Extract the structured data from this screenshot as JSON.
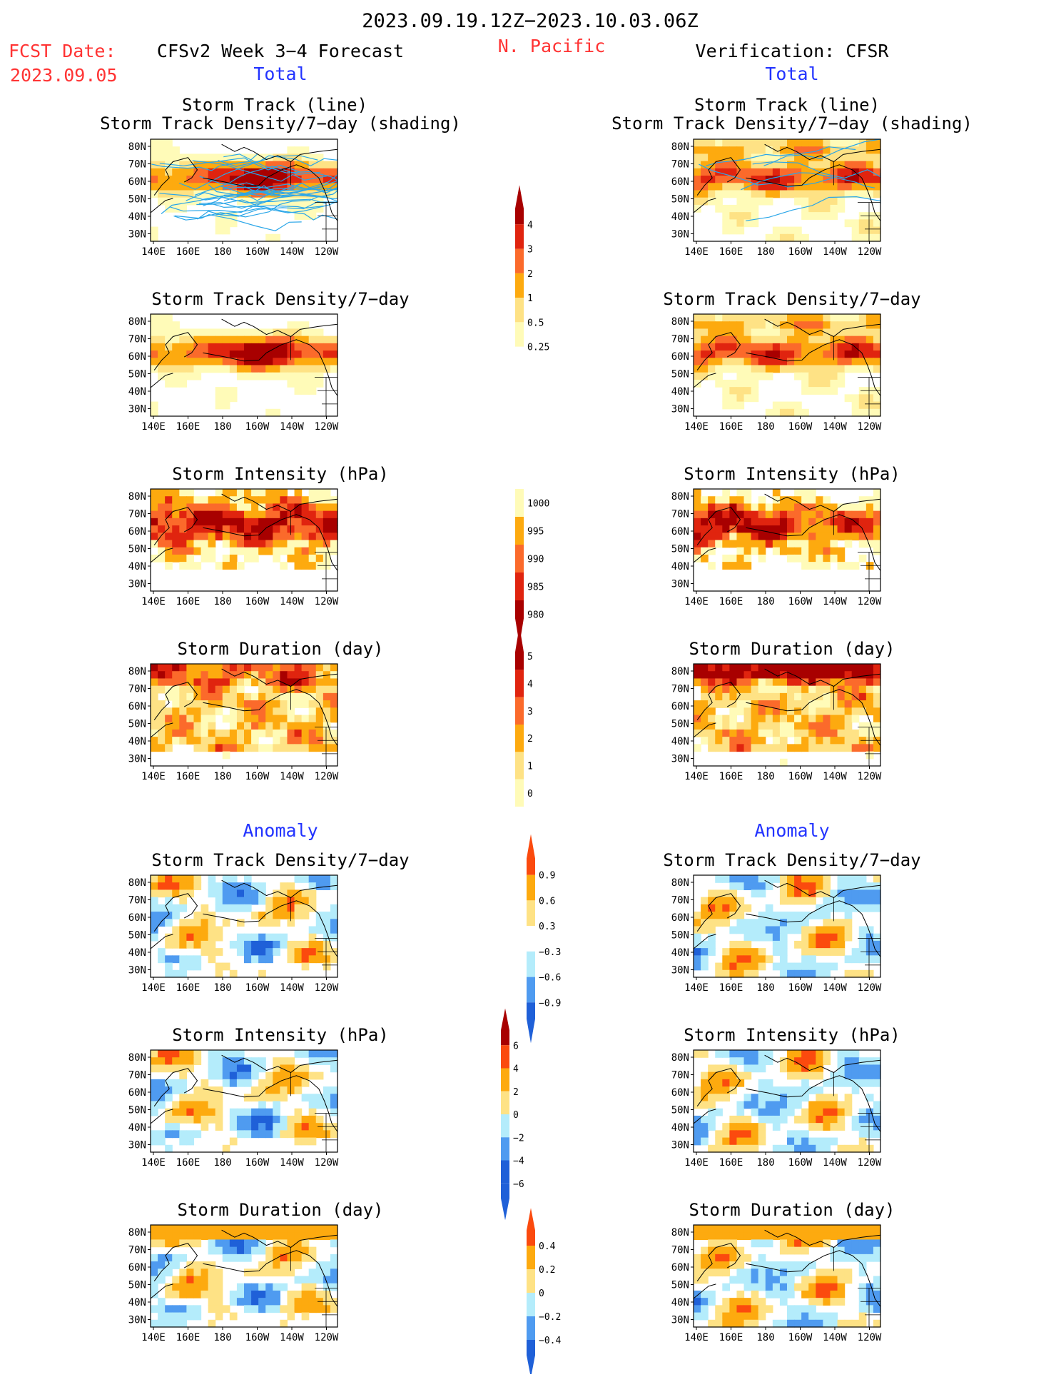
{
  "header": {
    "date_range": "2023.09.19.12Z−2023.10.03.06Z",
    "region": "N. Pacific",
    "fcst_label": "FCST Date:",
    "fcst_date": "2023.09.05",
    "forecast_title": "CFSv2 Week 3−4 Forecast",
    "verification_title": "Verification: CFSR",
    "left_sub": "Total",
    "right_sub": "Total"
  },
  "section_anomaly": "Anomaly",
  "axes": {
    "x_ticks": [
      "140E",
      "160E",
      "180",
      "160W",
      "140W",
      "120W"
    ],
    "y_ticks": [
      "80N",
      "70N",
      "60N",
      "50N",
      "40N",
      "30N"
    ]
  },
  "panels": {
    "st_title1": "Storm Track (line)",
    "st_title2": "Storm Track Density/7−day (shading)",
    "density": "Storm Track Density/7−day",
    "intensity": "Storm Intensity (hPa)",
    "duration": "Storm Duration (day)"
  },
  "colorbars": {
    "density": [
      "4",
      "3",
      "2",
      "1",
      "0.5",
      "0.25"
    ],
    "intensity": [
      "1000",
      "995",
      "990",
      "985",
      "980"
    ],
    "duration": [
      "5",
      "4",
      "3",
      "2",
      "1",
      "0"
    ],
    "density_anom": [
      "0.9",
      "0.6",
      "0.3",
      "−0.3",
      "−0.6",
      "−0.9"
    ],
    "intensity_anom": [
      "6",
      "4",
      "2",
      "0",
      "−2",
      "−4",
      "−6"
    ],
    "duration_anom": [
      "0.4",
      "0.2",
      "0",
      "−0.2",
      "−0.4"
    ]
  },
  "colors": {
    "warm": [
      "#fffbb8",
      "#fee285",
      "#fdaa0f",
      "#fb6a2b",
      "#e0240f",
      "#a80000"
    ],
    "intensity": [
      "#fffbb8",
      "#fdaa0f",
      "#fb6a2b",
      "#e0240f",
      "#a80000"
    ],
    "diverging": [
      "#1f60d8",
      "#4f9bf0",
      "#b4ecfb",
      "#ffffff",
      "#fee285",
      "#fdaa0f",
      "#fb4a0e"
    ],
    "track_line": "#2aa6e8"
  }
}
